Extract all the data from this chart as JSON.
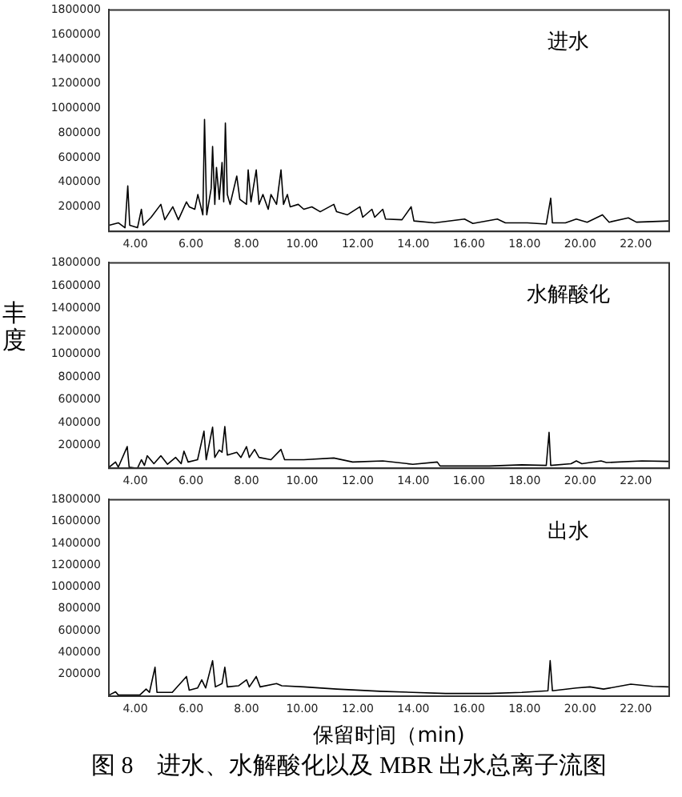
{
  "chart_data": [
    {
      "type": "line",
      "annotations": [
        "进水"
      ],
      "marker": "none",
      "legend": false,
      "xlim": [
        3.05,
        23.2
      ],
      "xticks": [
        {
          "value": 4,
          "label": "4.00"
        },
        {
          "value": 6,
          "label": "6.00"
        },
        {
          "value": 8,
          "label": "8.00"
        },
        {
          "value": 10,
          "label": "10.00"
        },
        {
          "value": 12,
          "label": "12.00"
        },
        {
          "value": 14,
          "label": "14.00"
        },
        {
          "value": 16,
          "label": "16.00"
        },
        {
          "value": 18,
          "label": "18.00"
        },
        {
          "value": 20,
          "label": "20.00"
        },
        {
          "value": 22,
          "label": "22.00"
        }
      ],
      "ylim": [
        0,
        1800000
      ],
      "yticks": [
        200000,
        400000,
        600000,
        800000,
        1000000,
        1200000,
        1400000,
        1600000,
        1800000
      ],
      "x": [
        3.06,
        3.39,
        3.63,
        3.73,
        3.8,
        4.08,
        4.22,
        4.29,
        4.57,
        4.92,
        5.06,
        5.35,
        5.55,
        5.84,
        5.94,
        6.14,
        6.25,
        6.43,
        6.49,
        6.57,
        6.73,
        6.78,
        6.86,
        6.92,
        7.02,
        7.12,
        7.18,
        7.24,
        7.31,
        7.41,
        7.65,
        7.76,
        8.0,
        8.06,
        8.16,
        8.35,
        8.45,
        8.59,
        8.78,
        8.88,
        9.08,
        9.24,
        9.33,
        9.47,
        9.57,
        9.86,
        10.06,
        10.35,
        10.65,
        11.14,
        11.24,
        11.63,
        12.08,
        12.18,
        12.51,
        12.61,
        12.9,
        13.0,
        13.59,
        13.92,
        14.02,
        14.76,
        15.84,
        16.14,
        17.02,
        17.31,
        18.1,
        18.78,
        18.94,
        19.0,
        19.47,
        19.86,
        20.25,
        20.8,
        21.04,
        21.73,
        22.02,
        23.2
      ],
      "series": [
        {
          "color": "#000000",
          "values": [
            50000,
            70000,
            30000,
            370000,
            50000,
            30000,
            180000,
            50000,
            115000,
            220000,
            95000,
            200000,
            95000,
            240000,
            200000,
            180000,
            300000,
            135000,
            910000,
            135000,
            350000,
            690000,
            220000,
            520000,
            260000,
            560000,
            240000,
            880000,
            300000,
            220000,
            450000,
            260000,
            220000,
            500000,
            240000,
            500000,
            220000,
            300000,
            180000,
            300000,
            220000,
            500000,
            220000,
            300000,
            200000,
            220000,
            180000,
            200000,
            160000,
            220000,
            160000,
            135000,
            200000,
            115000,
            180000,
            115000,
            180000,
            100000,
            95000,
            200000,
            85000,
            70000,
            100000,
            65000,
            100000,
            70000,
            70000,
            60000,
            270000,
            70000,
            70000,
            100000,
            75000,
            135000,
            75000,
            110000,
            75000,
            85000
          ]
        }
      ]
    },
    {
      "type": "line",
      "annotations": [
        "水解酸化"
      ],
      "ylabel": "丰度",
      "marker": "none",
      "legend": false,
      "xlim": [
        3.05,
        23.2
      ],
      "xticks": [
        {
          "value": 4,
          "label": "4.00"
        },
        {
          "value": 6,
          "label": "6.00"
        },
        {
          "value": 8,
          "label": "8.00"
        },
        {
          "value": 10,
          "label": "10.00"
        },
        {
          "value": 12,
          "label": "12.00"
        },
        {
          "value": 14,
          "label": "14.00"
        },
        {
          "value": 16,
          "label": "16.00"
        },
        {
          "value": 18,
          "label": "18.00"
        },
        {
          "value": 20,
          "label": "20.00"
        },
        {
          "value": 22,
          "label": "22.00"
        }
      ],
      "ylim": [
        0,
        1800000
      ],
      "yticks": [
        200000,
        400000,
        600000,
        800000,
        1000000,
        1200000,
        1400000,
        1600000,
        1800000
      ],
      "x": [
        3.06,
        3.29,
        3.39,
        3.71,
        3.78,
        4.08,
        4.22,
        4.33,
        4.43,
        4.67,
        4.92,
        5.16,
        5.45,
        5.65,
        5.75,
        5.9,
        6.24,
        6.47,
        6.55,
        6.78,
        6.86,
        7.02,
        7.12,
        7.22,
        7.31,
        7.65,
        7.8,
        8.0,
        8.1,
        8.29,
        8.45,
        8.88,
        9.24,
        9.37,
        10.06,
        11.14,
        11.82,
        12.9,
        13.98,
        14.86,
        14.96,
        16.73,
        17.9,
        18.78,
        18.88,
        18.94,
        19.67,
        19.86,
        20.06,
        20.75,
        20.94,
        22.22,
        23.2
      ],
      "series": [
        {
          "color": "#000000",
          "values": [
            10000,
            55000,
            10000,
            190000,
            10000,
            0,
            75000,
            25000,
            110000,
            40000,
            110000,
            35000,
            95000,
            40000,
            150000,
            55000,
            75000,
            325000,
            75000,
            360000,
            95000,
            160000,
            140000,
            365000,
            115000,
            140000,
            95000,
            190000,
            95000,
            165000,
            95000,
            75000,
            165000,
            75000,
            75000,
            90000,
            55000,
            65000,
            35000,
            55000,
            20000,
            20000,
            30000,
            25000,
            315000,
            25000,
            40000,
            65000,
            40000,
            65000,
            50000,
            65000,
            60000
          ]
        }
      ]
    },
    {
      "type": "line",
      "annotations": [
        "出水"
      ],
      "xlabel": "保留时间（min)",
      "title": "图 8　进水、水解酸化以及 MBR 出水总离子流图",
      "marker": "none",
      "legend": false,
      "xlim": [
        3.05,
        23.2
      ],
      "xticks": [
        {
          "value": 4,
          "label": "4.00"
        },
        {
          "value": 6,
          "label": "6.00"
        },
        {
          "value": 8,
          "label": "8.00"
        },
        {
          "value": 10,
          "label": "10.00"
        },
        {
          "value": 12,
          "label": "12.00"
        },
        {
          "value": 14,
          "label": "14.00"
        },
        {
          "value": 16,
          "label": "16.00"
        },
        {
          "value": 18,
          "label": "18.00"
        },
        {
          "value": 20,
          "label": "20.00"
        },
        {
          "value": 22,
          "label": "22.00"
        }
      ],
      "ylim": [
        0,
        1800000
      ],
      "yticks": [
        200000,
        400000,
        600000,
        800000,
        1000000,
        1200000,
        1400000,
        1600000,
        1800000
      ],
      "x": [
        3.06,
        3.29,
        3.39,
        4.16,
        4.39,
        4.51,
        4.71,
        4.78,
        5.33,
        5.84,
        5.94,
        6.24,
        6.39,
        6.53,
        6.78,
        6.88,
        7.12,
        7.22,
        7.31,
        7.71,
        8.0,
        8.1,
        8.35,
        8.49,
        9.08,
        9.27,
        10.06,
        11.24,
        12.8,
        13.98,
        15.16,
        16.73,
        17.9,
        18.84,
        18.92,
        19.0,
        19.86,
        20.35,
        20.84,
        21.82,
        22.61,
        23.2
      ],
      "series": [
        {
          "color": "#000000",
          "values": [
            10000,
            40000,
            10000,
            10000,
            65000,
            35000,
            265000,
            35000,
            35000,
            180000,
            55000,
            75000,
            150000,
            75000,
            325000,
            85000,
            115000,
            265000,
            85000,
            95000,
            150000,
            85000,
            180000,
            85000,
            115000,
            95000,
            85000,
            65000,
            45000,
            35000,
            25000,
            25000,
            35000,
            50000,
            325000,
            50000,
            75000,
            85000,
            65000,
            110000,
            90000,
            85000
          ]
        }
      ]
    }
  ]
}
